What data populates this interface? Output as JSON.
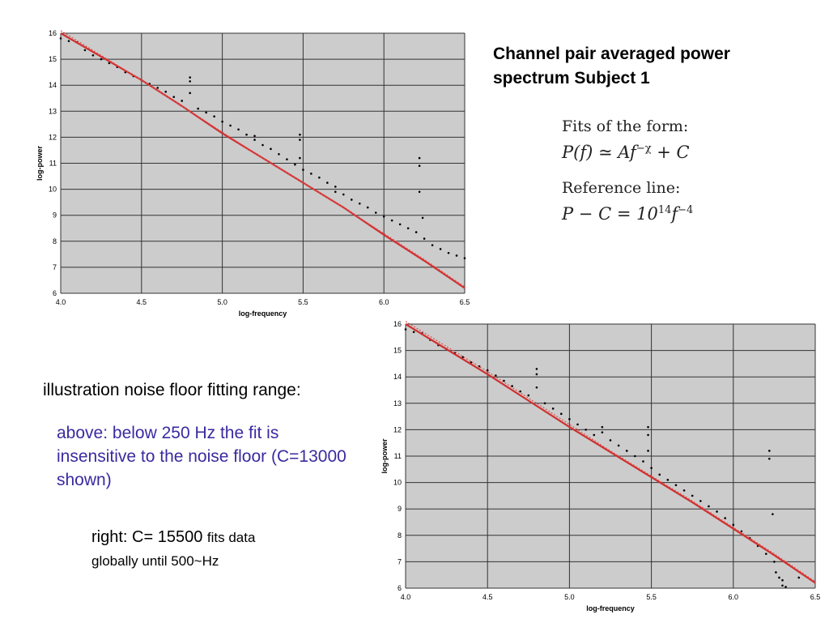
{
  "slide": {
    "title_line1": "Channel pair averaged power",
    "title_line2": "spectrum Subject 1",
    "fits_label": "Fits of the form:",
    "fits_eq_main": "P(f) ≃ Af",
    "fits_eq_exp": "−χ",
    "fits_eq_tail": " + C",
    "ref_label": "Reference line:",
    "ref_eq_main": "P − C = 10",
    "ref_eq_exp1": "14",
    "ref_eq_mid": "f",
    "ref_eq_exp2": "−4",
    "illustration": "illustration noise floor fitting range:",
    "above_note": "above: below 250 Hz the fit is insensitive to the noise floor (C=13000 shown)",
    "right_note_prefix": "right: C= 15500",
    "right_note_suffix": "fits data",
    "right_note_line2": "globally  until 500~Hz"
  },
  "colors": {
    "plot_bg": "#cccccc",
    "grid": "#333333",
    "fit_line": "#d03030",
    "ref_line": "#e05050",
    "data_points": "#000000"
  },
  "chart_data": [
    {
      "type": "scatter",
      "xlabel": "log-frequency",
      "ylabel": "log-power",
      "xlim": [
        4.0,
        6.5
      ],
      "ylim": [
        6,
        16
      ],
      "x_ticks": [
        4.0,
        4.5,
        5.0,
        5.5,
        6.0,
        6.5
      ],
      "y_ticks": [
        6,
        7,
        8,
        9,
        10,
        11,
        12,
        13,
        14,
        15,
        16
      ],
      "grid": true,
      "series": [
        {
          "kind": "points",
          "x": [
            4.0,
            4.05,
            4.1,
            4.15,
            4.2,
            4.25,
            4.3,
            4.35,
            4.4,
            4.45,
            4.5,
            4.55,
            4.6,
            4.65,
            4.7,
            4.75,
            4.8,
            4.8,
            4.8,
            4.85,
            4.9,
            4.95,
            5.0,
            5.05,
            5.1,
            5.15,
            5.2,
            5.2,
            5.25,
            5.3,
            5.35,
            5.4,
            5.45,
            5.48,
            5.48,
            5.48,
            5.5,
            5.55,
            5.6,
            5.65,
            5.7,
            5.7,
            5.75,
            5.8,
            5.85,
            5.9,
            5.95,
            6.0,
            6.05,
            6.1,
            6.15,
            6.2,
            6.22,
            6.22,
            6.22,
            6.24,
            6.25,
            6.3,
            6.35,
            6.4,
            6.45,
            6.5
          ],
          "y": [
            15.8,
            15.7,
            15.65,
            15.35,
            15.15,
            15.0,
            14.85,
            14.7,
            14.5,
            14.35,
            14.2,
            14.05,
            13.9,
            13.75,
            13.55,
            13.4,
            14.3,
            14.15,
            13.7,
            13.1,
            12.95,
            12.8,
            12.6,
            12.45,
            12.3,
            12.1,
            12.05,
            11.9,
            11.7,
            11.55,
            11.35,
            11.15,
            10.95,
            12.1,
            11.9,
            11.2,
            10.75,
            10.6,
            10.45,
            10.25,
            10.1,
            9.9,
            9.8,
            9.6,
            9.45,
            9.3,
            9.1,
            8.95,
            8.8,
            8.65,
            8.5,
            8.35,
            11.2,
            10.9,
            9.9,
            8.9,
            8.1,
            7.85,
            7.7,
            7.55,
            7.45,
            7.35
          ]
        },
        {
          "kind": "fit",
          "x": [
            4.0,
            4.25,
            4.5,
            4.75,
            5.0,
            5.25,
            5.5,
            5.75,
            6.0,
            6.25,
            6.5
          ],
          "y": [
            16.0,
            15.1,
            14.2,
            13.2,
            12.15,
            11.2,
            10.25,
            9.3,
            8.25,
            7.25,
            6.2
          ]
        },
        {
          "kind": "reference",
          "x": [
            4.0,
            4.25,
            4.5,
            4.75,
            5.0,
            5.25,
            5.5,
            5.75,
            6.0,
            6.25,
            6.5
          ],
          "y": [
            16.1,
            15.15,
            14.2,
            13.2,
            12.2,
            11.2,
            10.25,
            9.3,
            8.3,
            7.3,
            6.25
          ]
        }
      ]
    },
    {
      "type": "scatter",
      "xlabel": "log-frequency",
      "ylabel": "log-power",
      "xlim": [
        4.0,
        6.5
      ],
      "ylim": [
        6,
        16
      ],
      "x_ticks": [
        4.0,
        4.5,
        5.0,
        5.5,
        6.0,
        6.5
      ],
      "y_ticks": [
        6,
        7,
        8,
        9,
        10,
        11,
        12,
        13,
        14,
        15,
        16
      ],
      "grid": true,
      "series": [
        {
          "kind": "points",
          "x": [
            4.0,
            4.05,
            4.1,
            4.15,
            4.2,
            4.25,
            4.3,
            4.35,
            4.4,
            4.45,
            4.5,
            4.55,
            4.6,
            4.65,
            4.7,
            4.75,
            4.8,
            4.8,
            4.8,
            4.85,
            4.9,
            4.95,
            5.0,
            5.05,
            5.1,
            5.15,
            5.2,
            5.2,
            5.25,
            5.3,
            5.35,
            5.4,
            5.45,
            5.48,
            5.48,
            5.48,
            5.5,
            5.55,
            5.6,
            5.65,
            5.7,
            5.75,
            5.8,
            5.85,
            5.9,
            5.95,
            6.0,
            6.05,
            6.1,
            6.15,
            6.2,
            6.22,
            6.22,
            6.24,
            6.25,
            6.26,
            6.28,
            6.3,
            6.3,
            6.32,
            6.4
          ],
          "y": [
            15.8,
            15.7,
            15.65,
            15.4,
            15.2,
            15.05,
            14.9,
            14.75,
            14.55,
            14.4,
            14.25,
            14.05,
            13.85,
            13.65,
            13.45,
            13.3,
            14.3,
            14.1,
            13.6,
            13.0,
            12.8,
            12.6,
            12.4,
            12.2,
            12.0,
            11.8,
            12.1,
            11.9,
            11.6,
            11.4,
            11.2,
            11.0,
            10.8,
            12.1,
            11.8,
            11.2,
            10.55,
            10.3,
            10.1,
            9.9,
            9.7,
            9.5,
            9.3,
            9.1,
            8.9,
            8.65,
            8.4,
            8.15,
            7.9,
            7.6,
            7.3,
            11.2,
            10.9,
            8.8,
            7.0,
            6.6,
            6.4,
            6.3,
            6.1,
            6.05,
            6.4
          ]
        },
        {
          "kind": "fit",
          "x": [
            4.0,
            4.25,
            4.5,
            4.75,
            5.0,
            5.25,
            5.5,
            5.75,
            6.0,
            6.25,
            6.5
          ],
          "y": [
            16.0,
            15.05,
            14.1,
            13.1,
            12.1,
            11.15,
            10.2,
            9.25,
            8.25,
            7.25,
            6.2
          ]
        },
        {
          "kind": "reference",
          "x": [
            4.0,
            4.25,
            4.5,
            4.75,
            5.0,
            5.25,
            5.5,
            5.75,
            6.0,
            6.25,
            6.5
          ],
          "y": [
            16.1,
            15.15,
            14.2,
            13.2,
            12.2,
            11.2,
            10.25,
            9.3,
            8.3,
            7.3,
            6.25
          ]
        }
      ]
    }
  ]
}
